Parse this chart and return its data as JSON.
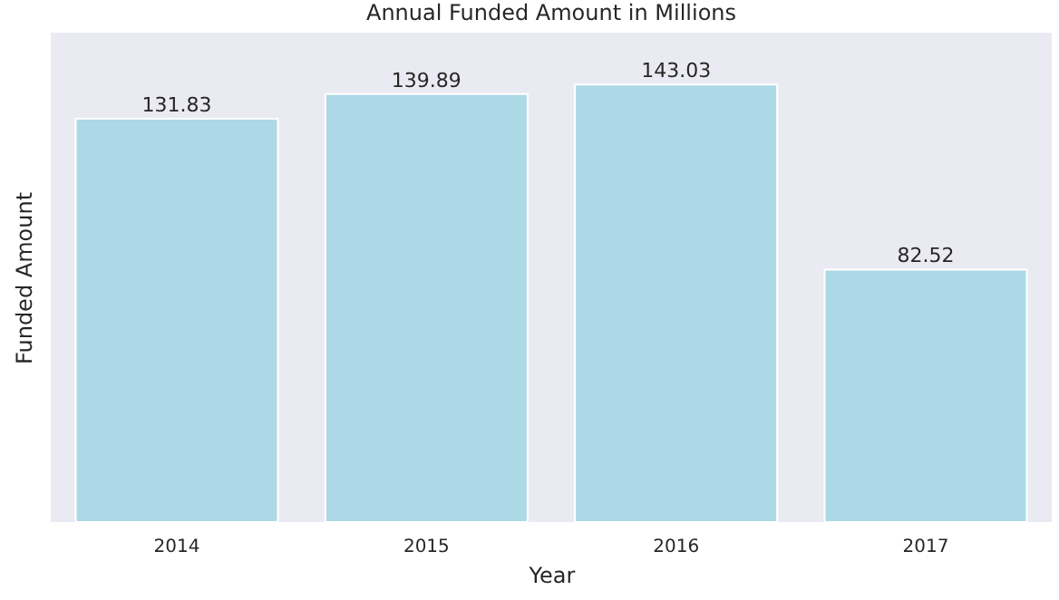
{
  "chart_data": {
    "type": "bar",
    "title": "Annual Funded Amount in Millions",
    "xlabel": "Year",
    "ylabel": "Funded Amount",
    "categories": [
      "2014",
      "2015",
      "2016",
      "2017"
    ],
    "values": [
      131.83,
      139.89,
      143.03,
      82.52
    ],
    "color": "#add8e6",
    "data_labels": true,
    "tick_labels": "x",
    "grid": false
  }
}
